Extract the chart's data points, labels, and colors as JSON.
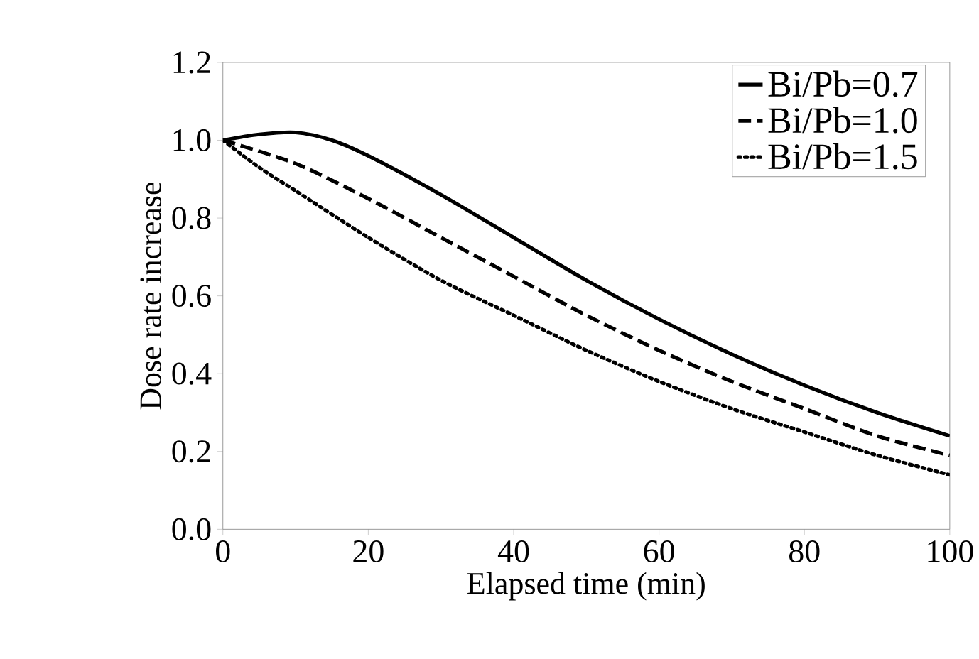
{
  "chart_data": {
    "type": "line",
    "xlabel": "Elapsed time (min)",
    "ylabel": "Dose rate increase",
    "xlim": [
      0,
      100
    ],
    "ylim": [
      0,
      1.2
    ],
    "xticks": [
      0,
      20,
      40,
      60,
      80,
      100
    ],
    "yticks": [
      {
        "value": 0,
        "label": "0.0"
      },
      0.2,
      0.4,
      0.6,
      0.8,
      {
        "value": 1,
        "label": "1.0"
      },
      {
        "value": 1.2,
        "label": "1.2"
      }
    ],
    "legend": "top right",
    "grid": false,
    "series": [
      {
        "name": "Bi/Pb=0.7",
        "color": "#000000",
        "line_style": "solid",
        "x": [
          0,
          5,
          10,
          15,
          20,
          30,
          40,
          50,
          60,
          70,
          80,
          90,
          100
        ],
        "values": [
          1.0,
          1.015,
          1.02,
          1.0,
          0.96,
          0.86,
          0.75,
          0.64,
          0.54,
          0.45,
          0.37,
          0.3,
          0.24
        ]
      },
      {
        "name": "Bi/Pb=1.0",
        "color": "#000000",
        "line_style": "dashed",
        "x": [
          0,
          10,
          20,
          30,
          40,
          50,
          60,
          70,
          80,
          90,
          100
        ],
        "values": [
          1.0,
          0.94,
          0.85,
          0.75,
          0.65,
          0.55,
          0.46,
          0.38,
          0.31,
          0.24,
          0.19
        ]
      },
      {
        "name": "Bi/Pb=1.5",
        "color": "#000000",
        "line_style": "dotted",
        "x": [
          0,
          5,
          10,
          20,
          30,
          40,
          50,
          60,
          70,
          80,
          90,
          100
        ],
        "values": [
          1.0,
          0.93,
          0.87,
          0.75,
          0.64,
          0.55,
          0.46,
          0.38,
          0.31,
          0.25,
          0.19,
          0.14
        ]
      }
    ]
  }
}
